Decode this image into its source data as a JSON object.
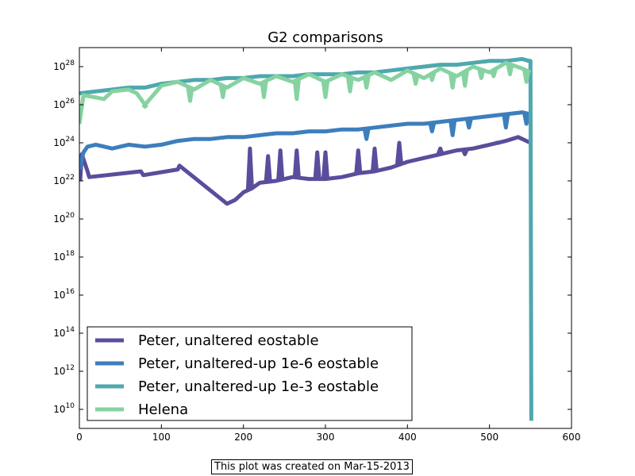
{
  "chart_data": {
    "type": "line",
    "title": "G2 comparisons",
    "xlabel": "",
    "ylabel": "",
    "xlim": [
      0,
      600
    ],
    "ylim_log10": [
      9,
      29
    ],
    "yscale": "log",
    "x_ticks": [
      "0",
      "100",
      "200",
      "300",
      "400",
      "500",
      "600"
    ],
    "y_tick_exponents": [
      "10",
      "12",
      "14",
      "16",
      "18",
      "20",
      "22",
      "24",
      "26",
      "28"
    ],
    "y_tick_base": "10",
    "legend_position": "lower-left",
    "grid": false,
    "series": [
      {
        "name": "Peter, unaltered eostable",
        "color": "#5b4d9c",
        "points": [
          [
            1,
            22.0
          ],
          [
            3,
            23.4
          ],
          [
            10,
            22.5
          ],
          [
            12,
            22.2
          ],
          [
            75,
            22.5
          ],
          [
            78,
            22.3
          ],
          [
            120,
            22.6
          ],
          [
            122,
            22.8
          ],
          [
            180,
            20.8
          ],
          [
            190,
            21.0
          ],
          [
            200,
            21.4
          ],
          [
            210,
            21.6
          ],
          [
            220,
            21.9
          ],
          [
            240,
            22.0
          ],
          [
            260,
            22.2
          ],
          [
            280,
            22.1
          ],
          [
            300,
            22.1
          ],
          [
            320,
            22.2
          ],
          [
            340,
            22.4
          ],
          [
            360,
            22.5
          ],
          [
            380,
            22.7
          ],
          [
            400,
            23.0
          ],
          [
            420,
            23.2
          ],
          [
            440,
            23.4
          ],
          [
            460,
            23.6
          ],
          [
            480,
            23.7
          ],
          [
            500,
            23.9
          ],
          [
            520,
            24.1
          ],
          [
            535,
            24.3
          ],
          [
            550,
            24.0
          ]
        ],
        "spikes": [
          [
            208,
            23.7
          ],
          [
            230,
            23.3
          ],
          [
            245,
            23.6
          ],
          [
            265,
            23.6
          ],
          [
            290,
            23.5
          ],
          [
            300,
            23.5
          ],
          [
            340,
            23.6
          ],
          [
            360,
            23.7
          ],
          [
            390,
            24.0
          ],
          [
            440,
            23.7
          ],
          [
            470,
            23.4
          ],
          [
            510,
            24.0
          ]
        ]
      },
      {
        "name": "Peter, unaltered-up 1e-6 eostable",
        "color": "#3d7ebd",
        "points": [
          [
            0,
            22.6
          ],
          [
            5,
            23.5
          ],
          [
            10,
            23.8
          ],
          [
            20,
            23.9
          ],
          [
            40,
            23.7
          ],
          [
            60,
            23.9
          ],
          [
            80,
            23.8
          ],
          [
            100,
            23.9
          ],
          [
            120,
            24.1
          ],
          [
            140,
            24.2
          ],
          [
            160,
            24.2
          ],
          [
            180,
            24.3
          ],
          [
            200,
            24.3
          ],
          [
            220,
            24.4
          ],
          [
            240,
            24.5
          ],
          [
            260,
            24.5
          ],
          [
            280,
            24.6
          ],
          [
            300,
            24.6
          ],
          [
            320,
            24.7
          ],
          [
            340,
            24.7
          ],
          [
            360,
            24.8
          ],
          [
            380,
            24.9
          ],
          [
            400,
            25.0
          ],
          [
            420,
            25.0
          ],
          [
            440,
            25.1
          ],
          [
            460,
            25.2
          ],
          [
            480,
            25.3
          ],
          [
            500,
            25.4
          ],
          [
            520,
            25.5
          ],
          [
            540,
            25.6
          ],
          [
            550,
            25.5
          ]
        ],
        "dips": [
          [
            350,
            24.2
          ],
          [
            430,
            24.6
          ],
          [
            455,
            24.4
          ],
          [
            475,
            24.8
          ],
          [
            520,
            24.8
          ],
          [
            545,
            25.0
          ]
        ]
      },
      {
        "name": "Peter, unaltered-up 1e-3 eostable",
        "color": "#4fa8ae",
        "points": [
          [
            0,
            26.6
          ],
          [
            20,
            26.7
          ],
          [
            40,
            26.8
          ],
          [
            60,
            26.9
          ],
          [
            80,
            26.9
          ],
          [
            100,
            27.1
          ],
          [
            120,
            27.2
          ],
          [
            140,
            27.3
          ],
          [
            160,
            27.3
          ],
          [
            180,
            27.4
          ],
          [
            200,
            27.4
          ],
          [
            220,
            27.5
          ],
          [
            240,
            27.5
          ],
          [
            260,
            27.5
          ],
          [
            280,
            27.6
          ],
          [
            300,
            27.6
          ],
          [
            320,
            27.6
          ],
          [
            340,
            27.7
          ],
          [
            360,
            27.7
          ],
          [
            380,
            27.8
          ],
          [
            400,
            27.9
          ],
          [
            420,
            28.0
          ],
          [
            440,
            28.1
          ],
          [
            460,
            28.1
          ],
          [
            480,
            28.2
          ],
          [
            500,
            28.3
          ],
          [
            520,
            28.3
          ],
          [
            540,
            28.4
          ],
          [
            548,
            28.3
          ],
          [
            550,
            28.3
          ],
          [
            551,
            9.4
          ]
        ]
      },
      {
        "name": "Helena",
        "color": "#86d2a0",
        "points": [
          [
            0,
            25.0
          ],
          [
            5,
            26.5
          ],
          [
            30,
            26.3
          ],
          [
            40,
            26.7
          ],
          [
            60,
            26.8
          ],
          [
            70,
            26.6
          ],
          [
            80,
            26.0
          ],
          [
            100,
            27.0
          ],
          [
            120,
            27.2
          ],
          [
            140,
            26.8
          ],
          [
            160,
            27.3
          ],
          [
            180,
            26.9
          ],
          [
            200,
            27.4
          ],
          [
            220,
            27.1
          ],
          [
            240,
            27.5
          ],
          [
            260,
            27.2
          ],
          [
            280,
            27.6
          ],
          [
            300,
            27.2
          ],
          [
            320,
            27.6
          ],
          [
            340,
            27.3
          ],
          [
            360,
            27.7
          ],
          [
            380,
            27.3
          ],
          [
            400,
            27.8
          ],
          [
            420,
            27.4
          ],
          [
            440,
            27.9
          ],
          [
            460,
            27.5
          ],
          [
            480,
            28.0
          ],
          [
            500,
            27.7
          ],
          [
            520,
            28.2
          ],
          [
            540,
            27.9
          ],
          [
            550,
            27.7
          ]
        ],
        "dips": [
          [
            80,
            25.9
          ],
          [
            135,
            26.2
          ],
          [
            175,
            26.4
          ],
          [
            225,
            26.4
          ],
          [
            265,
            26.3
          ],
          [
            300,
            26.4
          ],
          [
            330,
            26.7
          ],
          [
            350,
            26.9
          ],
          [
            410,
            27.1
          ],
          [
            430,
            27.3
          ],
          [
            455,
            26.9
          ],
          [
            470,
            27.0
          ],
          [
            490,
            27.4
          ],
          [
            505,
            27.5
          ],
          [
            525,
            27.6
          ],
          [
            545,
            27.2
          ]
        ]
      }
    ]
  },
  "footer": {
    "note": "This plot was created on Mar-15-2013"
  }
}
